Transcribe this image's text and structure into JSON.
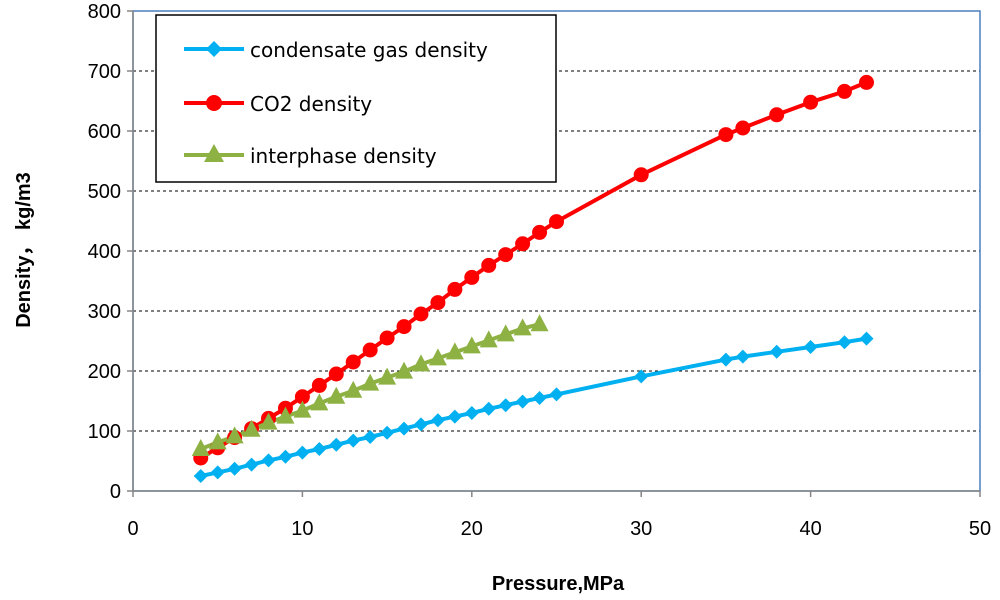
{
  "chart_data": {
    "type": "line",
    "title": "",
    "xlabel": "Pressure,MPa",
    "ylabel": "Density，  kg/m3",
    "xlim": [
      0,
      50
    ],
    "ylim": [
      0,
      800
    ],
    "xticks": [
      "0",
      "10",
      "20",
      "30",
      "40",
      "50"
    ],
    "yticks": [
      "0",
      "100",
      "200",
      "300",
      "400",
      "500",
      "600",
      "700",
      "800"
    ],
    "grid": "horizontal dashed",
    "legend_position": "top-left",
    "series": [
      {
        "name": "condensate gas density",
        "color": "#00b0f0",
        "marker": "diamond",
        "x": [
          4,
          5,
          6,
          7,
          8,
          9,
          10,
          11,
          12,
          13,
          14,
          15,
          16,
          17,
          18,
          19,
          20,
          21,
          22,
          23,
          24,
          25,
          30,
          35,
          36,
          38,
          40,
          42,
          43.3
        ],
        "y": [
          25,
          31,
          37,
          44,
          51,
          57,
          64,
          70,
          77,
          84,
          90,
          97,
          104,
          111,
          118,
          124,
          130,
          137,
          143,
          149,
          155,
          161,
          191,
          219,
          224,
          232,
          240,
          248,
          254
        ]
      },
      {
        "name": "CO2 density",
        "color": "#ff0000",
        "marker": "circle",
        "x": [
          4,
          5,
          6,
          7,
          8,
          9,
          10,
          11,
          12,
          13,
          14,
          15,
          16,
          17,
          18,
          19,
          20,
          21,
          22,
          23,
          24,
          25,
          30,
          35,
          36,
          38,
          40,
          42,
          43.3
        ],
        "y": [
          55,
          72,
          89,
          104,
          121,
          138,
          157,
          176,
          195,
          215,
          235,
          255,
          274,
          295,
          314,
          336,
          356,
          376,
          394,
          412,
          431,
          449,
          527,
          594,
          605,
          627,
          648,
          666,
          681
        ]
      },
      {
        "name": "interphase density",
        "color": "#8db143",
        "marker": "triangle",
        "x": [
          4,
          5,
          6,
          7,
          8,
          9,
          10,
          11,
          12,
          13,
          14,
          15,
          16,
          17,
          18,
          19,
          20,
          21,
          22,
          23,
          24
        ],
        "y": [
          70,
          81,
          91,
          102,
          114,
          124,
          134,
          146,
          157,
          167,
          179,
          189,
          199,
          211,
          221,
          231,
          241,
          251,
          261,
          271,
          278
        ]
      }
    ]
  }
}
